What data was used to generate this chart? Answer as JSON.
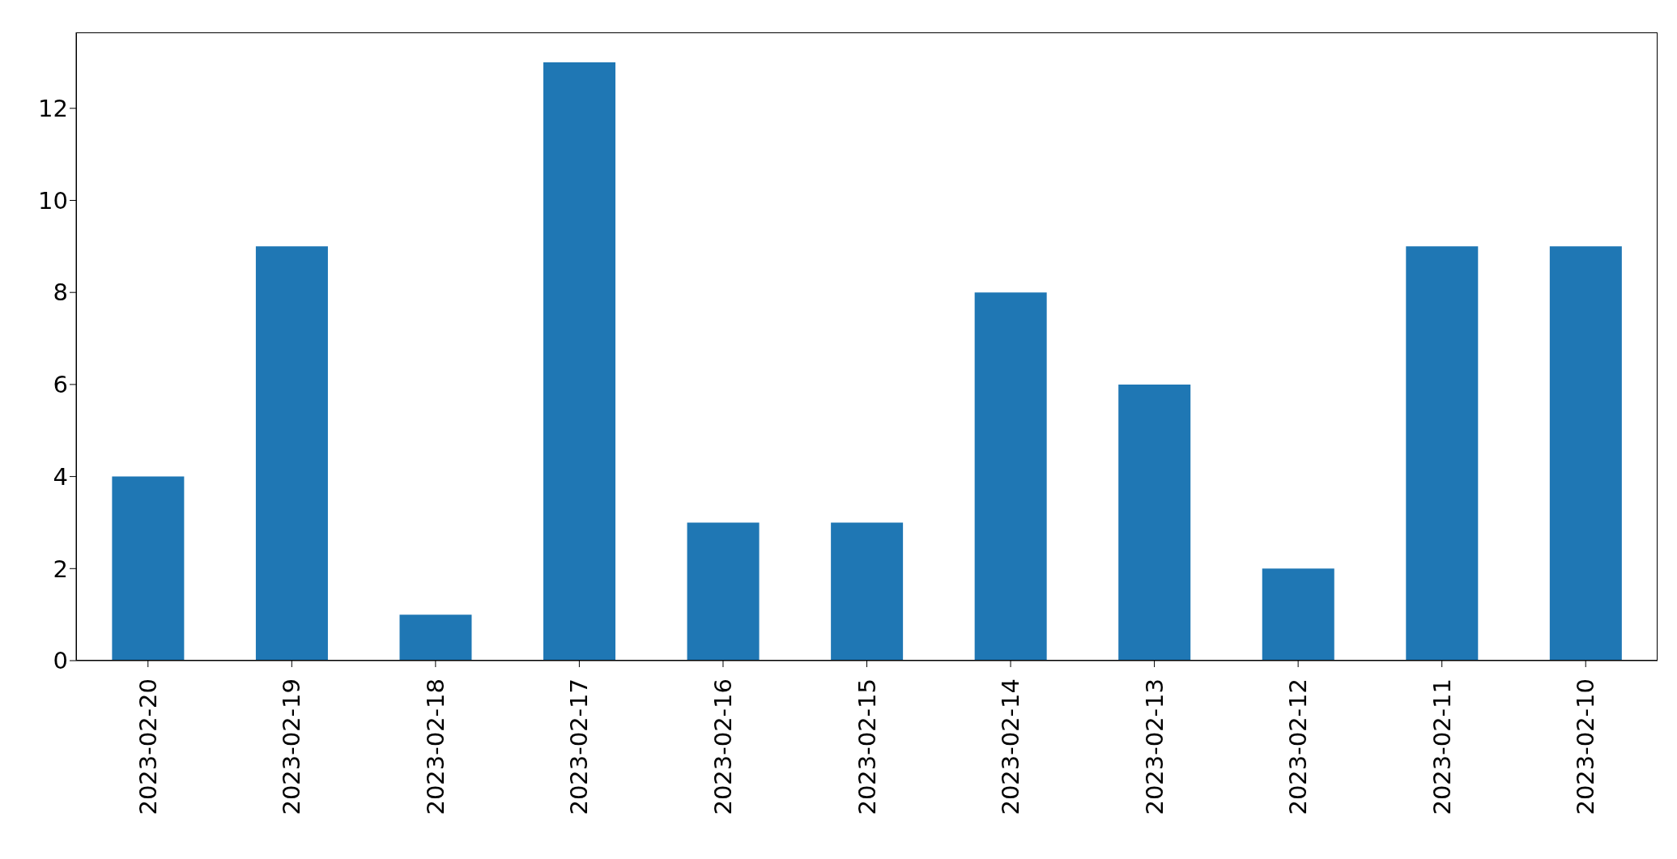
{
  "chart_data": {
    "type": "bar",
    "categories": [
      "2023-02-20",
      "2023-02-19",
      "2023-02-18",
      "2023-02-17",
      "2023-02-16",
      "2023-02-15",
      "2023-02-14",
      "2023-02-13",
      "2023-02-12",
      "2023-02-11",
      "2023-02-10"
    ],
    "values": [
      4,
      9,
      1,
      13,
      3,
      3,
      8,
      6,
      2,
      9,
      9
    ],
    "color": "#1f77b4",
    "ylim": [
      0,
      13.65
    ],
    "yticks": [
      0,
      2,
      4,
      6,
      8,
      10,
      12
    ],
    "grid": false,
    "legend": false
  }
}
